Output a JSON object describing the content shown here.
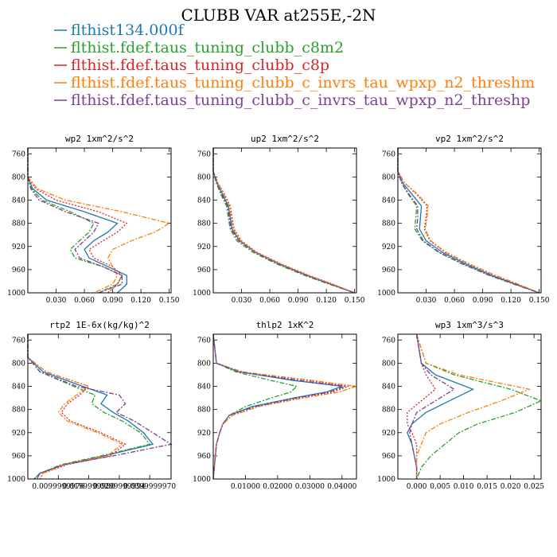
{
  "title": "CLUBB VAR at255E,-2N",
  "legend": [
    {
      "name": "flthist134.000f",
      "color": "#1f77b4",
      "dash": "solid"
    },
    {
      "name": "flthist.fdef.taus_tuning_clubb_c8m2",
      "color": "#2ca02c",
      "dash": "dashdot"
    },
    {
      "name": "flthist.fdef.taus_tuning_clubb_c8p",
      "color": "#d62728",
      "dash": "dot"
    },
    {
      "name": "flthist.fdef.taus_tuning_clubb_c_invrs_tau_wpxp_n2_threshm",
      "color": "#ff7f0e",
      "dash": "dashdot"
    },
    {
      "name": "flthist.fdef.taus_tuning_clubb_c_invrs_tau_wpxp_n2_threshp",
      "color": "#7f3f98",
      "dash": "dashdot"
    }
  ],
  "chart_data": [
    {
      "type": "line",
      "title": "wp2  1xm^2/s^2",
      "xlim": [
        0,
        0.152
      ],
      "ylim": [
        1000,
        750
      ],
      "xticks": [
        0.03,
        0.06,
        0.09,
        0.12,
        0.15
      ],
      "xtick_labels": [
        "0.030",
        "0.060",
        "0.090",
        "0.120",
        "0.150"
      ],
      "yticks": [
        760,
        800,
        840,
        880,
        920,
        960,
        1000
      ],
      "y": [
        750,
        800,
        820,
        840,
        860,
        880,
        895,
        910,
        925,
        940,
        955,
        970,
        985,
        1000
      ],
      "series": [
        {
          "values": [
            0.0,
            0.0,
            0.005,
            0.02,
            0.06,
            0.095,
            0.085,
            0.07,
            0.06,
            0.065,
            0.085,
            0.105,
            0.105,
            0.095
          ]
        },
        {
          "values": [
            0.0,
            0.0,
            0.004,
            0.015,
            0.045,
            0.07,
            0.065,
            0.055,
            0.045,
            0.05,
            0.08,
            0.1,
            0.095,
            0.075
          ]
        },
        {
          "values": [
            0.0,
            0.0,
            0.008,
            0.03,
            0.075,
            0.105,
            0.095,
            0.08,
            0.065,
            0.07,
            0.09,
            0.1,
            0.095,
            0.085
          ]
        },
        {
          "values": [
            0.0,
            0.0,
            0.01,
            0.04,
            0.1,
            0.15,
            0.135,
            0.11,
            0.09,
            0.085,
            0.09,
            0.095,
            0.09,
            0.07
          ]
        },
        {
          "values": [
            0.0,
            0.0,
            0.003,
            0.012,
            0.04,
            0.075,
            0.07,
            0.06,
            0.05,
            0.055,
            0.08,
            0.1,
            0.1,
            0.075
          ]
        }
      ]
    },
    {
      "type": "line",
      "title": "up2  1xm^2/s^2",
      "xlim": [
        0,
        0.152
      ],
      "ylim": [
        1000,
        750
      ],
      "xticks": [
        0.03,
        0.06,
        0.09,
        0.12,
        0.15
      ],
      "xtick_labels": [
        "0.030",
        "0.060",
        "0.090",
        "0.120",
        "0.150"
      ],
      "yticks": [
        760,
        800,
        840,
        880,
        920,
        960,
        1000
      ],
      "y": [
        750,
        790,
        810,
        830,
        850,
        870,
        890,
        910,
        930,
        950,
        970,
        985,
        1000
      ],
      "series": [
        {
          "values": [
            0.0,
            0.0,
            0.004,
            0.01,
            0.016,
            0.018,
            0.02,
            0.028,
            0.045,
            0.07,
            0.1,
            0.125,
            0.15
          ]
        },
        {
          "values": [
            0.0,
            0.0,
            0.003,
            0.008,
            0.014,
            0.016,
            0.018,
            0.025,
            0.042,
            0.067,
            0.097,
            0.123,
            0.15
          ]
        },
        {
          "values": [
            0.0,
            0.0,
            0.005,
            0.012,
            0.018,
            0.02,
            0.022,
            0.03,
            0.046,
            0.072,
            0.102,
            0.127,
            0.15
          ]
        },
        {
          "values": [
            0.0,
            0.0,
            0.005,
            0.011,
            0.017,
            0.019,
            0.021,
            0.029,
            0.045,
            0.071,
            0.101,
            0.126,
            0.15
          ]
        },
        {
          "values": [
            0.0,
            0.0,
            0.004,
            0.009,
            0.015,
            0.017,
            0.019,
            0.027,
            0.044,
            0.069,
            0.099,
            0.124,
            0.15
          ]
        }
      ]
    },
    {
      "type": "line",
      "title": "vp2  1xm^2/s^2",
      "xlim": [
        0,
        0.152
      ],
      "ylim": [
        1000,
        750
      ],
      "xticks": [
        0.03,
        0.06,
        0.09,
        0.12,
        0.15
      ],
      "xtick_labels": [
        "0.030",
        "0.060",
        "0.090",
        "0.120",
        "0.150"
      ],
      "yticks": [
        760,
        800,
        840,
        880,
        920,
        960,
        1000
      ],
      "y": [
        750,
        790,
        810,
        830,
        850,
        870,
        890,
        910,
        930,
        950,
        970,
        985,
        1000
      ],
      "series": [
        {
          "values": [
            0.0,
            0.0,
            0.005,
            0.015,
            0.025,
            0.024,
            0.023,
            0.03,
            0.047,
            0.072,
            0.1,
            0.125,
            0.15
          ]
        },
        {
          "values": [
            0.0,
            0.0,
            0.004,
            0.011,
            0.02,
            0.019,
            0.018,
            0.026,
            0.043,
            0.068,
            0.097,
            0.123,
            0.15
          ]
        },
        {
          "values": [
            0.0,
            0.0,
            0.007,
            0.02,
            0.031,
            0.03,
            0.028,
            0.034,
            0.05,
            0.075,
            0.103,
            0.127,
            0.15
          ]
        },
        {
          "values": [
            0.0,
            0.0,
            0.007,
            0.021,
            0.032,
            0.031,
            0.029,
            0.035,
            0.051,
            0.076,
            0.104,
            0.128,
            0.15
          ]
        },
        {
          "values": [
            0.0,
            0.0,
            0.004,
            0.012,
            0.021,
            0.021,
            0.02,
            0.027,
            0.044,
            0.069,
            0.098,
            0.124,
            0.15
          ]
        }
      ]
    },
    {
      "type": "line",
      "title": "rtp2  1E-6x(kg/kg)^2",
      "xlim": [
        0,
        4.7e-06
      ],
      "ylim": [
        1000,
        750
      ],
      "xticks": [
        9.999e-07,
        1.9999e-06,
        2.9999e-06,
        3.9999e-06
      ],
      "xtick_labels": [
        "0.0099999976",
        "0.0199999980",
        "0.0299999994",
        "0.0399999970"
      ],
      "yticks": [
        760,
        800,
        840,
        880,
        920,
        960,
        1000
      ],
      "y": [
        750,
        790,
        815,
        840,
        855,
        870,
        885,
        900,
        920,
        940,
        960,
        975,
        990,
        1000
      ],
      "series": [
        {
          "values": [
            0.0,
            0.0,
            5e-07,
            1.8e-06,
            2.6e-06,
            2.4e-06,
            2.8e-06,
            3.3e-06,
            3.8e-06,
            4.1e-06,
            2.5e-06,
            1.2e-06,
            4e-07,
            3e-07
          ]
        },
        {
          "values": [
            0.0,
            0.0,
            4e-07,
            1.5e-06,
            2.2e-06,
            2.1e-06,
            2.5e-06,
            3.1e-06,
            3.7e-06,
            4e-06,
            2.4e-06,
            1.1e-06,
            4e-07,
            2e-07
          ]
        },
        {
          "values": [
            0.0,
            0.0,
            6e-07,
            2e-06,
            1.7e-06,
            1.3e-06,
            1.1e-06,
            1.4e-06,
            2.4e-06,
            3.2e-06,
            2.7e-06,
            1.3e-06,
            5e-07,
            4e-07
          ]
        },
        {
          "values": [
            0.0,
            0.0,
            6e-07,
            2e-06,
            1.6e-06,
            1.2e-06,
            1e-06,
            1.3e-06,
            2.3e-06,
            3.1e-06,
            2.6e-06,
            1.2e-06,
            5e-07,
            4e-07
          ]
        },
        {
          "values": [
            0.0,
            0.0,
            4e-07,
            1.6e-06,
            3e-06,
            3.2e-06,
            2.9e-06,
            3.5e-06,
            4.1e-06,
            4.7e-06,
            2.8e-06,
            1.2e-06,
            4e-07,
            2e-07
          ]
        }
      ]
    },
    {
      "type": "line",
      "title": "thlp2  1xK^2",
      "xlim": [
        0,
        0.0445
      ],
      "ylim": [
        1000,
        750
      ],
      "xticks": [
        0.01,
        0.02,
        0.03,
        0.04
      ],
      "xtick_labels": [
        "0.01000",
        "0.02000",
        "0.03000",
        "0.04000"
      ],
      "yticks": [
        760,
        800,
        840,
        880,
        920,
        960,
        1000
      ],
      "y": [
        750,
        800,
        815,
        830,
        840,
        850,
        860,
        875,
        890,
        905,
        920,
        940,
        970,
        1000
      ],
      "series": [
        {
          "values": [
            0.0,
            0.001,
            0.008,
            0.025,
            0.04,
            0.035,
            0.025,
            0.012,
            0.005,
            0.003,
            0.002,
            0.001,
            0.0005,
            0.0
          ]
        },
        {
          "values": [
            0.0,
            0.001,
            0.007,
            0.018,
            0.026,
            0.024,
            0.018,
            0.01,
            0.005,
            0.003,
            0.002,
            0.001,
            0.0005,
            0.0
          ]
        },
        {
          "values": [
            0.0,
            0.001,
            0.009,
            0.03,
            0.042,
            0.037,
            0.027,
            0.014,
            0.006,
            0.003,
            0.002,
            0.001,
            0.0005,
            0.0
          ]
        },
        {
          "values": [
            0.0,
            0.001,
            0.009,
            0.031,
            0.0445,
            0.039,
            0.028,
            0.014,
            0.006,
            0.003,
            0.002,
            0.001,
            0.0005,
            0.0
          ]
        },
        {
          "values": [
            0.0,
            0.001,
            0.008,
            0.027,
            0.041,
            0.036,
            0.026,
            0.013,
            0.005,
            0.003,
            0.002,
            0.001,
            0.0005,
            0.0
          ]
        }
      ]
    },
    {
      "type": "line",
      "title": "wp3  1xm^3/s^3",
      "xlim": [
        -0.004,
        0.0265
      ],
      "ylim": [
        1000,
        750
      ],
      "xticks": [
        0.0,
        0.005,
        0.01,
        0.015,
        0.02,
        0.025
      ],
      "xtick_labels": [
        "0.000",
        "0.005",
        "0.010",
        "0.015",
        "0.020",
        "0.025"
      ],
      "yticks": [
        760,
        800,
        840,
        880,
        920,
        960,
        1000
      ],
      "y": [
        750,
        800,
        820,
        845,
        865,
        885,
        905,
        920,
        940,
        960,
        980,
        1000
      ],
      "series": [
        {
          "values": [
            0.0,
            0.001,
            0.004,
            0.012,
            0.007,
            0.002,
            -0.001,
            -0.002,
            -0.001,
            -0.0005,
            0.0,
            0.0
          ]
        },
        {
          "values": [
            0.0,
            0.002,
            0.008,
            0.02,
            0.0265,
            0.021,
            0.013,
            0.009,
            0.006,
            0.003,
            0.001,
            0.0
          ]
        },
        {
          "values": [
            0.0,
            0.001,
            0.002,
            0.004,
            0.001,
            -0.002,
            -0.002,
            -0.001,
            0.0,
            0.0,
            0.0,
            0.0
          ]
        },
        {
          "values": [
            0.0,
            0.002,
            0.009,
            0.024,
            0.018,
            0.011,
            0.005,
            0.002,
            0.001,
            0.0,
            0.0,
            0.0
          ]
        },
        {
          "values": [
            0.0,
            0.001,
            0.003,
            0.008,
            0.004,
            0.0,
            -0.001,
            -0.0015,
            -0.001,
            -0.0005,
            0.0,
            0.0
          ]
        }
      ]
    }
  ]
}
